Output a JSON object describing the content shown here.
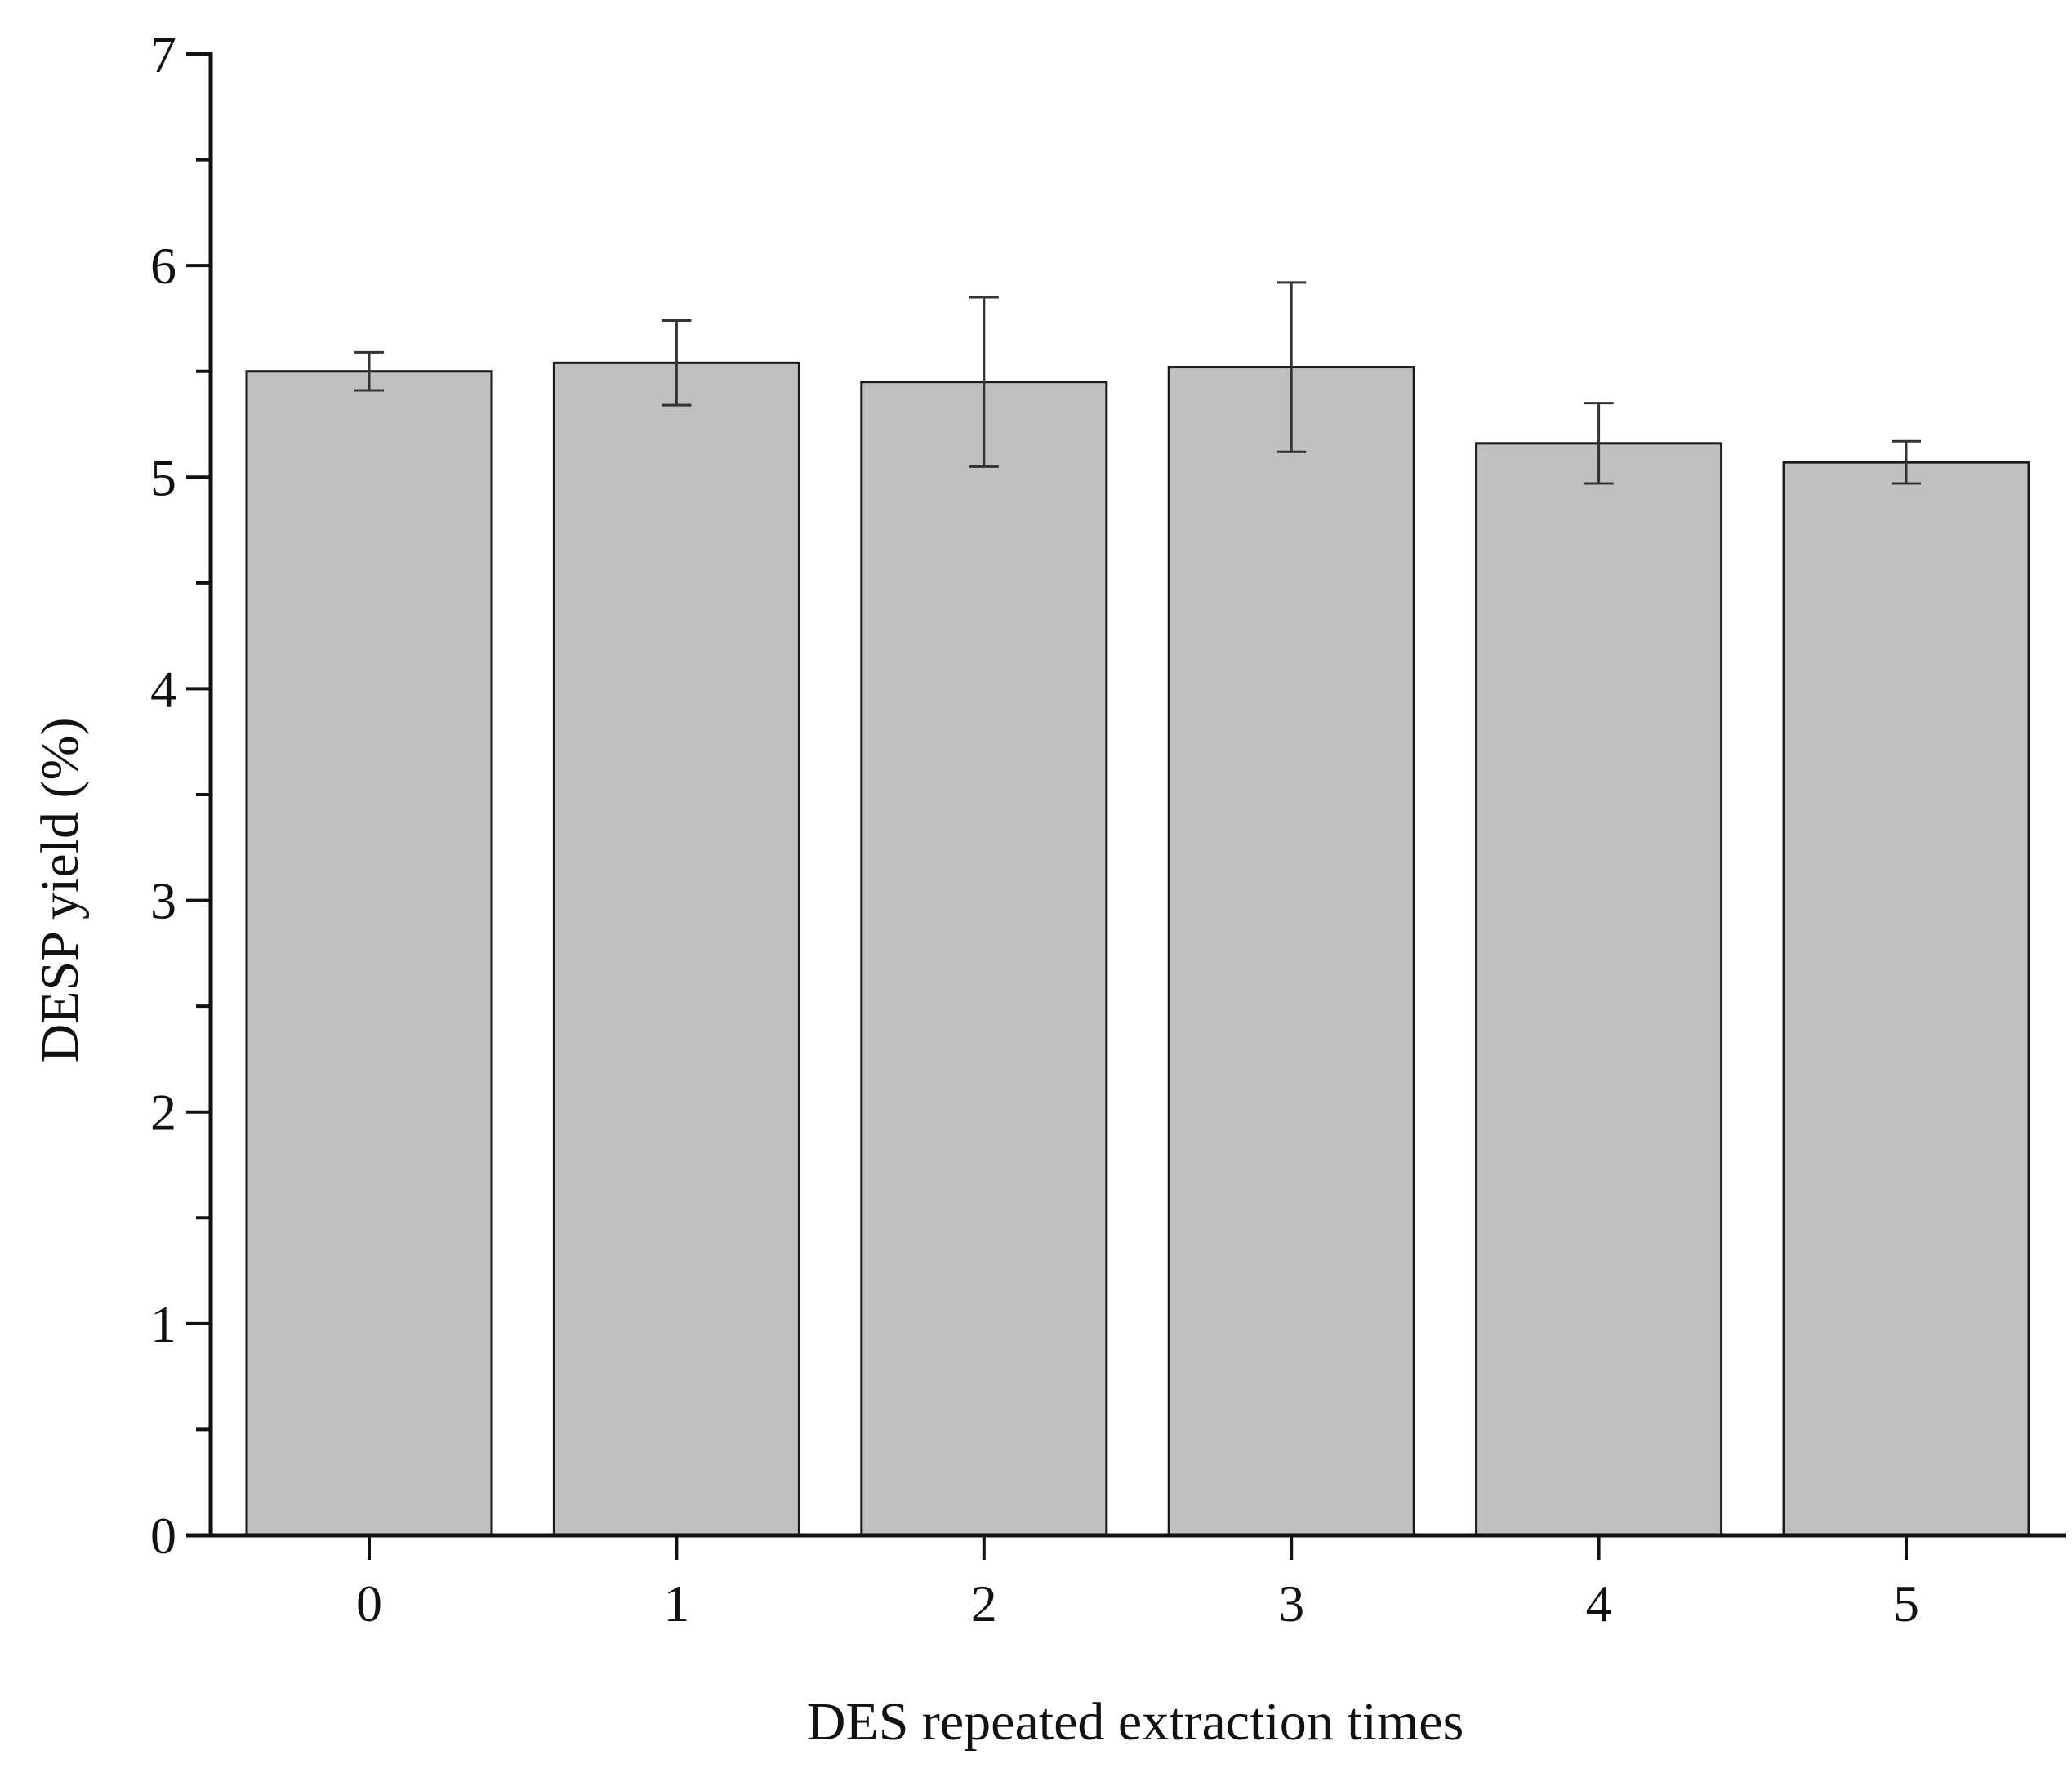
{
  "chart_data": {
    "type": "bar",
    "title": "",
    "xlabel": "DES repeated extraction times",
    "ylabel": "DESP yield (%)",
    "categories": [
      "0",
      "1",
      "2",
      "3",
      "4",
      "5"
    ],
    "values": [
      5.5,
      5.54,
      5.45,
      5.52,
      5.16,
      5.07
    ],
    "error": [
      0.09,
      0.2,
      0.4,
      0.4,
      0.19,
      0.1
    ],
    "ylim": [
      0,
      7
    ],
    "yticks": [
      "0",
      "1",
      "2",
      "3",
      "4",
      "5",
      "6",
      "7"
    ],
    "grid": false,
    "legend": "none",
    "colors": {
      "bar_fill": "#c0c0c0",
      "bar_stroke": "#1a1a1a",
      "axis": "#111111",
      "error_bar": "#333333"
    }
  }
}
